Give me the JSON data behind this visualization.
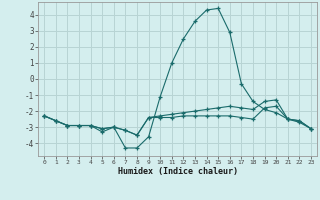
{
  "xlabel": "Humidex (Indice chaleur)",
  "background_color": "#d4eeee",
  "grid_color": "#b8d4d4",
  "line_color": "#1a6b6b",
  "x_values": [
    0,
    1,
    2,
    3,
    4,
    5,
    6,
    7,
    8,
    9,
    10,
    11,
    12,
    13,
    14,
    15,
    16,
    17,
    18,
    19,
    20,
    21,
    22,
    23
  ],
  "series1": [
    -2.3,
    -2.6,
    -2.9,
    -2.9,
    -2.9,
    -3.3,
    -3.0,
    -4.3,
    -4.3,
    -3.6,
    -1.1,
    1.0,
    2.5,
    3.6,
    4.3,
    4.4,
    2.9,
    -0.3,
    -1.4,
    -1.9,
    -2.1,
    -2.5,
    -2.7,
    -3.1
  ],
  "series2": [
    -2.3,
    -2.6,
    -2.9,
    -2.9,
    -2.9,
    -3.1,
    -3.0,
    -3.2,
    -3.5,
    -2.4,
    -2.4,
    -2.4,
    -2.3,
    -2.3,
    -2.3,
    -2.3,
    -2.3,
    -2.4,
    -2.5,
    -1.8,
    -1.7,
    -2.5,
    -2.6,
    -3.1
  ],
  "series3": [
    -2.3,
    -2.6,
    -2.9,
    -2.9,
    -2.9,
    -3.1,
    -3.0,
    -3.2,
    -3.5,
    -2.4,
    -2.3,
    -2.2,
    -2.1,
    -2.0,
    -1.9,
    -1.8,
    -1.7,
    -1.8,
    -1.9,
    -1.4,
    -1.3,
    -2.5,
    -2.6,
    -3.1
  ],
  "ylim": [
    -4.8,
    4.8
  ],
  "xlim": [
    -0.5,
    23.5
  ],
  "yticks": [
    -4,
    -3,
    -2,
    -1,
    0,
    1,
    2,
    3,
    4
  ],
  "xticks": [
    0,
    1,
    2,
    3,
    4,
    5,
    6,
    7,
    8,
    9,
    10,
    11,
    12,
    13,
    14,
    15,
    16,
    17,
    18,
    19,
    20,
    21,
    22,
    23
  ]
}
